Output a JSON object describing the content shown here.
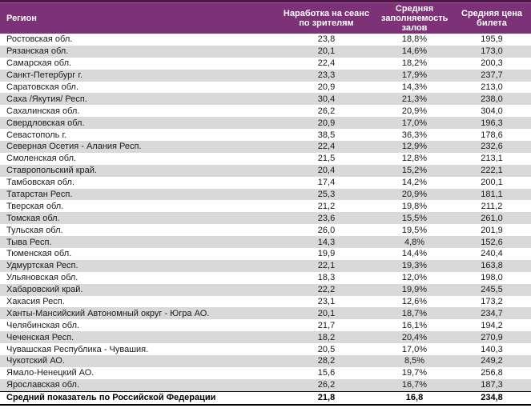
{
  "chart_data": {
    "type": "table",
    "title": "",
    "columns": [
      "Регион",
      "Наработка на сеанс по зрителям",
      "Средняя заполняемость залов",
      "Средняя цена билета"
    ],
    "rows": [
      [
        "Ростовская обл.",
        "23,8",
        "18,8%",
        "195,9"
      ],
      [
        "Рязанская обл.",
        "20,1",
        "14,6%",
        "173,0"
      ],
      [
        "Самарская обл.",
        "22,4",
        "18,2%",
        "200,3"
      ],
      [
        "Санкт-Петербург г.",
        "23,3",
        "17,9%",
        "237,7"
      ],
      [
        "Саратовская обл.",
        "20,9",
        "14,3%",
        "213,0"
      ],
      [
        "Саха /Якутия/ Респ.",
        "30,4",
        "21,3%",
        "238,0"
      ],
      [
        "Сахалинская обл.",
        "26,2",
        "20,9%",
        "304,0"
      ],
      [
        "Свердловская обл.",
        "20,9",
        "17,0%",
        "196,3"
      ],
      [
        "Севастополь г.",
        "38,5",
        "36,3%",
        "178,6"
      ],
      [
        "Северная Осетия - Алания Респ.",
        "22,4",
        "12,9%",
        "232,6"
      ],
      [
        "Смоленская обл.",
        "21,5",
        "12,8%",
        "213,1"
      ],
      [
        "Ставропольский край.",
        "20,4",
        "15,2%",
        "222,1"
      ],
      [
        "Тамбовская обл.",
        "17,4",
        "14,2%",
        "200,1"
      ],
      [
        "Татарстан Респ.",
        "25,3",
        "20,9%",
        "181,1"
      ],
      [
        "Тверская обл.",
        "21,2",
        "19,8%",
        "211,2"
      ],
      [
        "Томская обл.",
        "23,6",
        "15,5%",
        "261,0"
      ],
      [
        "Тульская обл.",
        "26,0",
        "19,5%",
        "201,9"
      ],
      [
        "Тыва Респ.",
        "14,3",
        "4,8%",
        "152,6"
      ],
      [
        "Тюменская обл.",
        "19,9",
        "14,4%",
        "240,4"
      ],
      [
        "Удмуртская Респ.",
        "22,1",
        "19,3%",
        "163,8"
      ],
      [
        "Ульяновская обл.",
        "18,3",
        "12,0%",
        "198,0"
      ],
      [
        "Хабаровский край.",
        "22,2",
        "19,9%",
        "245,5"
      ],
      [
        "Хакасия Респ.",
        "23,1",
        "12,6%",
        "173,2"
      ],
      [
        "Ханты-Мансийский Автономный округ - Югра АО.",
        "20,1",
        "18,7%",
        "234,7"
      ],
      [
        "Челябинская обл.",
        "21,7",
        "16,1%",
        "194,2"
      ],
      [
        "Чеченская Респ.",
        "18,2",
        "20,4%",
        "270,9"
      ],
      [
        "Чувашская Республика - Чувашия.",
        "20,5",
        "17,0%",
        "140,3"
      ],
      [
        "Чукотский АО.",
        "28,2",
        "8,5%",
        "249,2"
      ],
      [
        "Ямало-Ненецкий АО.",
        "15,6",
        "19,7%",
        "256,8"
      ],
      [
        "Ярославская обл.",
        "26,2",
        "16,7%",
        "187,3"
      ]
    ],
    "summary_row": [
      "Средний показатель по Российской Федерации",
      "21,8",
      "16,8",
      "234,8"
    ],
    "layout": {
      "stripes": "alternating white / light gray",
      "legend": "none",
      "grid": "off"
    }
  },
  "colors": {
    "header_bg": "#7D3277",
    "header_top_border": "#4E1447",
    "header_highlight": "#9A5C94",
    "header_text": "#FFFFFF",
    "row_stripe": "#D9D9D9",
    "body_text": "#1A1A1A",
    "summary_border": "#000000"
  }
}
